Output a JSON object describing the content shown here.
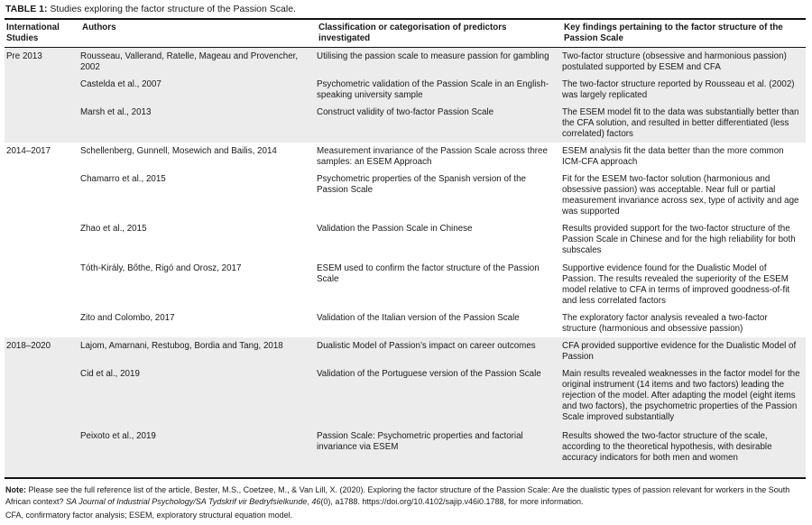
{
  "caption": {
    "label": "TABLE 1:",
    "text": " Studies exploring the factor structure of the Passion Scale."
  },
  "headers": [
    "International Studies",
    "Authors",
    "Classification or categorisation of predictors investigated",
    "Key findings pertaining to the factor structure of the Passion Scale"
  ],
  "groups": [
    {
      "period": "Pre 2013",
      "rows": [
        {
          "authors": "Rousseau, Vallerand, Ratelle, Mageau and Provencher, 2002",
          "classification": "Utilising the passion scale to measure passion for gambling",
          "findings": "Two-factor structure (obsessive and harmonious passion) postulated supported by ESEM and CFA"
        },
        {
          "authors": "Castelda et al., 2007",
          "classification": "Psychometric validation of the Passion Scale in an English-speaking university sample",
          "findings": "The two-factor structure reported by Rousseau et al. (2002) was largely replicated"
        },
        {
          "authors": "Marsh et al., 2013",
          "classification": "Construct validity of two-factor Passion Scale",
          "findings": "The ESEM model fit to the data was substantially better than the CFA solution, and resulted in better differentiated (less correlated) factors"
        }
      ]
    },
    {
      "period": "2014–2017",
      "rows": [
        {
          "authors": "Schellenberg, Gunnell, Mosewich and Bailis, 2014",
          "classification": "Measurement invariance of the Passion Scale across three samples: an ESEM Approach",
          "findings": "ESEM analysis fit the data better than the more common ICM-CFA approach"
        },
        {
          "authors": "Chamarro et al., 2015",
          "classification": "Psychometric properties of the Spanish version of the Passion Scale",
          "findings": "Fit for the ESEM two-factor solution (harmonious and obsessive passion) was acceptable. Near full or partial measurement invariance across sex, type of activity and age was supported"
        },
        {
          "authors": "Zhao et al., 2015",
          "classification": "Validation the Passion Scale in Chinese",
          "findings": "Results provided support for the two-factor structure of the Passion Scale in Chinese and for the high reliability for both subscales"
        },
        {
          "authors": "Tóth-Király, Bőthe, Rigó and Orosz, 2017",
          "classification": "ESEM used to confirm the factor structure of the Passion Scale",
          "findings": "Supportive evidence found for the Dualistic Model of Passion. The results revealed the superiority of the ESEM model relative to CFA in terms of improved goodness-of-fit and less correlated factors"
        },
        {
          "authors": "Zito and Colombo, 2017",
          "classification": "Validation of the Italian version of the Passion Scale",
          "findings": "The exploratory factor analysis revealed a two-factor structure (harmonious and obsessive passion)"
        }
      ]
    },
    {
      "period": "2018–2020",
      "rows": [
        {
          "authors": "Lajom, Amarnani, Restubog, Bordia and Tang, 2018",
          "classification": "Dualistic Model of Passion’s impact on career outcomes",
          "findings": "CFA provided supportive evidence for the Dualistic Model of Passion"
        },
        {
          "authors": "Cid et al., 2019",
          "classification": "Validation of the Portuguese version of the Passion Scale",
          "findings": "Main results revealed weaknesses in the factor model for the original instrument (14 items and two factors) leading the rejection of the model. After adapting the model (eight items and two factors), the psychometric properties of the Passion Scale improved substantially"
        },
        {
          "authors": "Peixoto et al., 2019",
          "classification": "Passion Scale: Psychometric properties and factorial invariance via ESEM",
          "findings": "Results showed the two-factor structure of the scale, according to the theoretical hypothesis, with desirable accuracy indicators for both men and women"
        }
      ]
    }
  ],
  "note": {
    "label": "Note:",
    "text1": " Please see the full reference list of the article, Bester, M.S., Coetzee, M., & Van Lill, X. (2020). Exploring the factor structure of the Passion Scale: Are the dualistic types of passion relevant for workers in the South African context? ",
    "journal": "SA Journal of Industrial Psychology/SA Tydskrif vir Bedryfsielkunde",
    "text2": ", ",
    "volume": "46",
    "text3": "(0), a1788. https://doi.org/10.4102/sajip.v46i0.1788, for more information."
  },
  "abbreviations": "CFA, confirmatory factor analysis; ESEM, exploratory structural equation model.",
  "colors": {
    "group_shade": "#ececec",
    "rule": "#111111"
  }
}
